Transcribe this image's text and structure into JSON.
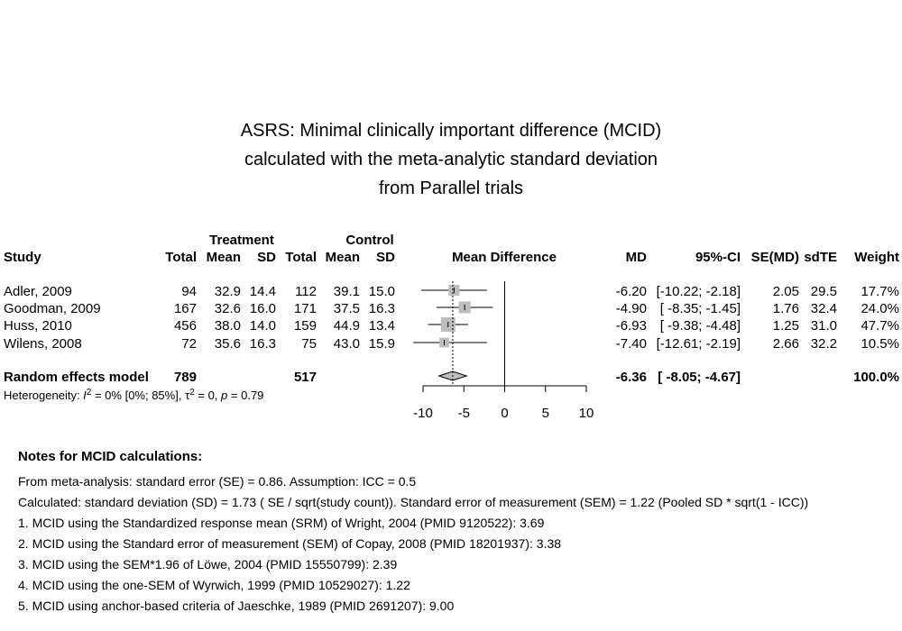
{
  "chart_data": {
    "type": "forest",
    "title_lines": [
      "ASRS: Minimal clinically important difference (MCID)",
      "calculated with the meta-analytic standard deviation",
      "from Parallel trials"
    ],
    "group_headers": {
      "treatment": "Treatment",
      "control": "Control"
    },
    "column_headers": {
      "study": "Study",
      "total_t": "Total",
      "mean_t": "Mean",
      "sd_t": "SD",
      "total_c": "Total",
      "mean_c": "Mean",
      "sd_c": "SD",
      "plot": "Mean Difference",
      "md": "MD",
      "ci": "95%-CI",
      "se": "SE(MD)",
      "sdte": "sdTE",
      "weight": "Weight"
    },
    "studies": [
      {
        "study": "Adler, 2009",
        "total_t": "94",
        "mean_t": "32.9",
        "sd_t": "14.4",
        "total_c": "112",
        "mean_c": "39.1",
        "sd_c": "15.0",
        "md_text": "-6.20",
        "ci_text": "[-10.22; -2.18]",
        "se_text": "2.05",
        "sdte_text": "29.5",
        "weight_text": "17.7%",
        "md": -6.2,
        "lower": -10.22,
        "upper": -2.18,
        "weight": 17.7
      },
      {
        "study": "Goodman, 2009",
        "total_t": "167",
        "mean_t": "32.6",
        "sd_t": "16.0",
        "total_c": "171",
        "mean_c": "37.5",
        "sd_c": "16.3",
        "md_text": "-4.90",
        "ci_text": "[ -8.35; -1.45]",
        "se_text": "1.76",
        "sdte_text": "32.4",
        "weight_text": "24.0%",
        "md": -4.9,
        "lower": -8.35,
        "upper": -1.45,
        "weight": 24.0
      },
      {
        "study": "Huss, 2010",
        "total_t": "456",
        "mean_t": "38.0",
        "sd_t": "14.0",
        "total_c": "159",
        "mean_c": "44.9",
        "sd_c": "13.4",
        "md_text": "-6.93",
        "ci_text": "[ -9.38; -4.48]",
        "se_text": "1.25",
        "sdte_text": "31.0",
        "weight_text": "47.7%",
        "md": -6.93,
        "lower": -9.38,
        "upper": -4.48,
        "weight": 47.7
      },
      {
        "study": "Wilens, 2008",
        "total_t": "72",
        "mean_t": "35.6",
        "sd_t": "16.3",
        "total_c": "75",
        "mean_c": "43.0",
        "sd_c": "15.9",
        "md_text": "-7.40",
        "ci_text": "[-12.61; -2.19]",
        "se_text": "2.66",
        "sdte_text": "32.2",
        "weight_text": "10.5%",
        "md": -7.4,
        "lower": -12.61,
        "upper": -2.19,
        "weight": 10.5
      }
    ],
    "pooled": {
      "label": "Random effects model",
      "total_t": "789",
      "total_c": "517",
      "md_text": "-6.36",
      "ci_text": "[ -8.05; -4.67]",
      "weight_text": "100.0%",
      "md": -6.36,
      "lower": -8.05,
      "upper": -4.67
    },
    "heterogeneity": {
      "prefix": "Heterogeneity: ",
      "i2_symbol": "I",
      "i2_text": " = 0% [0%; 85%], ",
      "tau_symbol": "τ",
      "tau_text": " = 0, ",
      "p_symbol": "p",
      "p_text": " = 0.79",
      "superscript": "2"
    },
    "x_axis": {
      "min": -10,
      "max": 10,
      "ticks": [
        -10,
        -5,
        0,
        5,
        10
      ],
      "tick_labels": [
        "-10",
        "-5",
        "0",
        "5",
        "10"
      ],
      "reference": 0
    }
  },
  "notes": {
    "title": "Notes for MCID calculations:",
    "lines": [
      "From meta-analysis: standard error (SE) = 0.86. Assumption: ICC = 0.5",
      "Calculated: standard deviation (SD) = 1.73 ( SE / sqrt(study count)).  Standard error of measurement (SEM) = 1.22 (Pooled SD * sqrt(1 - ICC))",
      "1. MCID using the Standardized response mean (SRM) of Wright, 2004 (PMID 9120522): 3.69",
      "2. MCID using the Standard error of measurement (SEM) of Copay, 2008 (PMID 18201937): 3.38",
      "3. MCID using the SEM*1.96 of Löwe, 2004 (PMID 15550799): 2.39",
      "4. MCID using the one-SEM of Wyrwich, 1999 (PMID 10529027): 1.22",
      "5. MCID using anchor-based criteria of Jaeschke, 1989 (PMID 2691207): 9.00"
    ]
  },
  "colors": {
    "box": "#bdbdbd",
    "diamond": "#bdbdbd",
    "line": "#000000"
  }
}
